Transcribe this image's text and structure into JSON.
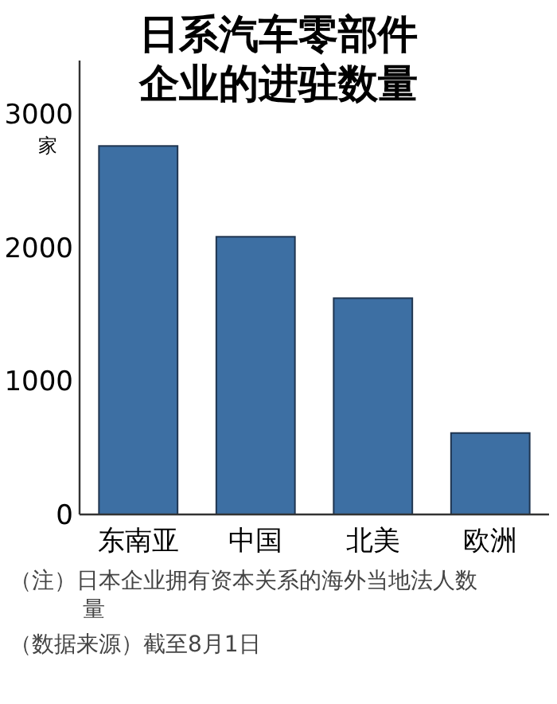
{
  "chart_data": {
    "type": "bar",
    "title": "日系汽车零部件企业的进驻数量",
    "ylabel": "家",
    "categories": [
      "东南亚",
      "中国",
      "北美",
      "欧洲"
    ],
    "values": [
      2760,
      2080,
      1620,
      610
    ],
    "color": "#3d6fa3",
    "ylim": [
      0,
      3400
    ],
    "yticks": [
      0,
      1000,
      2000,
      3000
    ],
    "grid": false,
    "annotations": [
      "（注）日本企业拥有资本关系的海外当地法人数量",
      "（数据来源）截至8月1日"
    ]
  }
}
